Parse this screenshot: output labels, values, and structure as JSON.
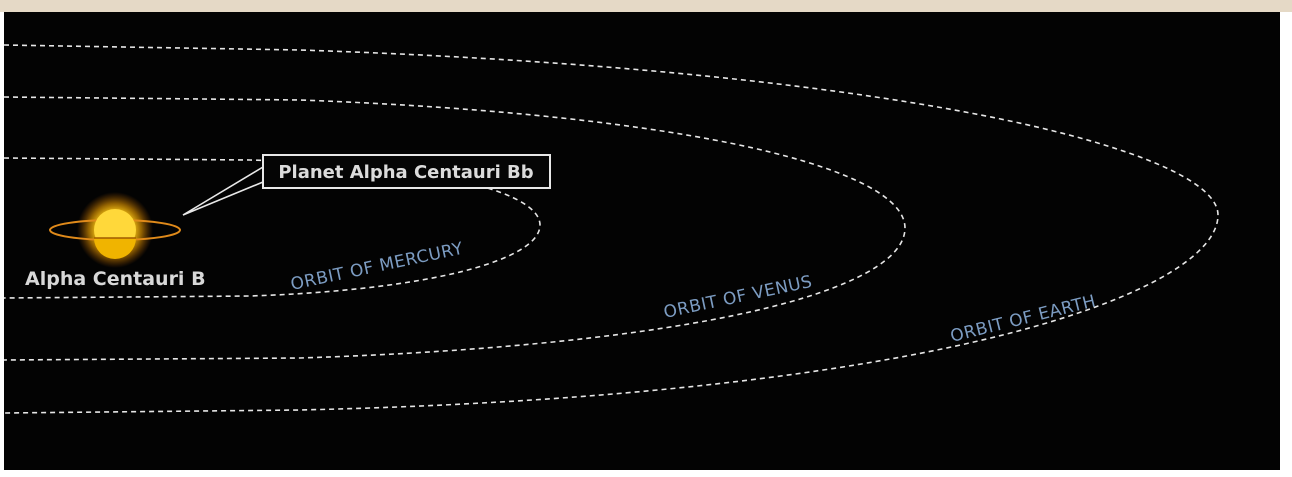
{
  "star": {
    "label": "Alpha Centauri B"
  },
  "planet": {
    "label": "Planet Alpha Centauri Bb"
  },
  "orbits": [
    {
      "label": "ORBIT OF MERCURY"
    },
    {
      "label": "ORBIT OF VENUS"
    },
    {
      "label": "ORBIT OF EARTH"
    }
  ]
}
